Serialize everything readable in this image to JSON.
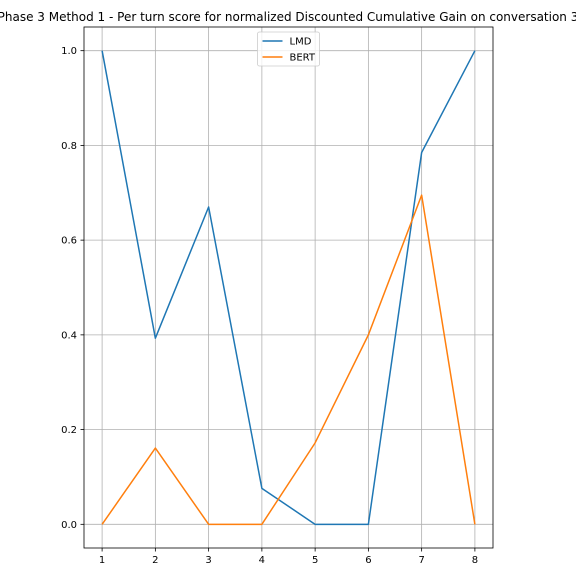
{
  "chart_data": {
    "type": "line",
    "title": "Phase 3 Method 1 - Per turn score for normalized Discounted Cumulative Gain on conversation 3",
    "xlabel": "",
    "ylabel": "",
    "x": [
      1,
      2,
      3,
      4,
      5,
      6,
      7,
      8
    ],
    "xlim": [
      0.66,
      8.34
    ],
    "ylim": [
      -0.05,
      1.05
    ],
    "xticks": [
      1,
      2,
      3,
      4,
      5,
      6,
      7,
      8
    ],
    "yticks": [
      0.0,
      0.2,
      0.4,
      0.6,
      0.8,
      1.0
    ],
    "ytick_labels": [
      "0.0",
      "0.2",
      "0.4",
      "0.6",
      "0.8",
      "1.0"
    ],
    "grid": true,
    "legend_position": "upper center",
    "series": [
      {
        "name": "LMD",
        "color": "#1f77b4",
        "values": [
          1.0,
          0.393,
          0.67,
          0.076,
          0.0,
          0.0,
          0.785,
          1.0
        ]
      },
      {
        "name": "BERT",
        "color": "#ff7f0e",
        "values": [
          0.0,
          0.161,
          0.0,
          0.0,
          0.172,
          0.4,
          0.695,
          0.0
        ]
      }
    ]
  }
}
